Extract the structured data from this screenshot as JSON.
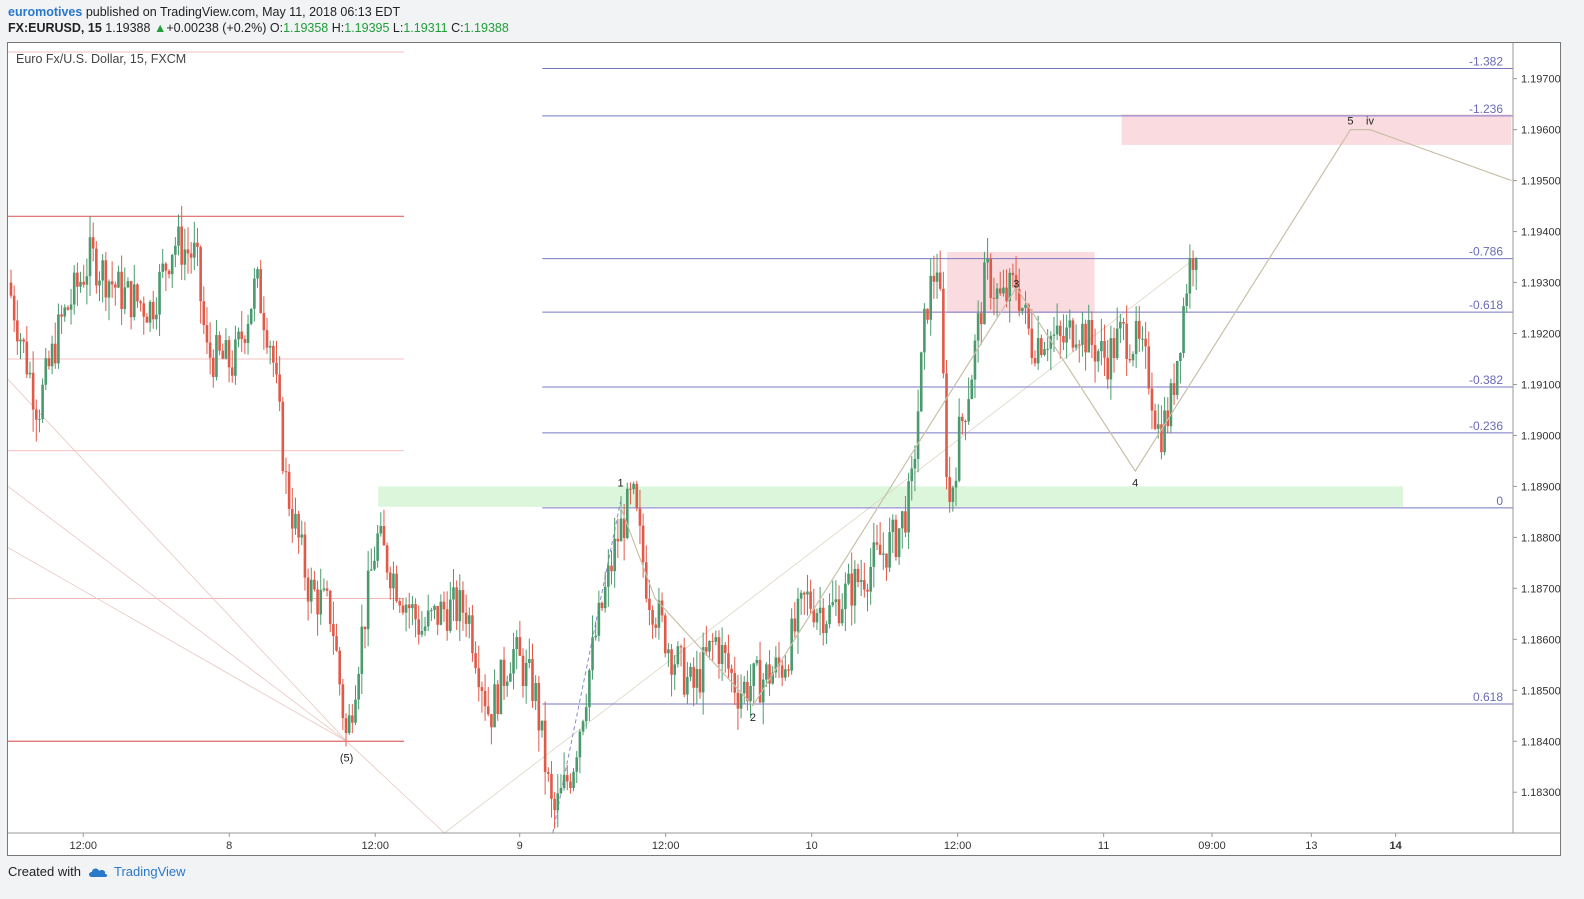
{
  "header": {
    "author": "euromotives",
    "published": " published on TradingView.com, May 11, 2018 06:13 EDT",
    "symbol": "FX:EURUSD, 15",
    "last": "1.19388",
    "change": "+0.00238 (+0.2%)",
    "open_label": "O:",
    "open": "1.19358",
    "high_label": "H:",
    "high": "1.19395",
    "low_label": "L:",
    "low": "1.19311",
    "close_label": "C:",
    "close": "1.19388"
  },
  "chart_title": "Euro Fx/U.S. Dollar, 15, FXCM",
  "footer": {
    "created_with": "Created with",
    "brand": "TradingView"
  },
  "colors": {
    "up": "#4a9a6e",
    "down": "#e05a4a",
    "fib_line": "#7777c4",
    "red_line": "#e06666",
    "pink_zone": "#f9d6da",
    "green_zone": "#d6f5d6",
    "wave_line": "#c9c0a8"
  },
  "chart_data": {
    "type": "candlestick",
    "title": "Euro Fx/U.S. Dollar, 15, FXCM",
    "ylim": [
      1.1822,
      1.1977
    ],
    "y_ticks": [
      "1.19700",
      "1.19600",
      "1.19500",
      "1.19400",
      "1.19300",
      "1.19200",
      "1.19100",
      "1.19000",
      "1.18900",
      "1.18800",
      "1.18700",
      "1.18600",
      "1.18500",
      "1.18400",
      "1.18300"
    ],
    "x_ticks": [
      "12:00",
      "8",
      "12:00",
      "9",
      "12:00",
      "10",
      "12:00",
      "11",
      "09:00",
      "13",
      "14"
    ],
    "price_path": [
      [
        0.0,
        1.193
      ],
      [
        0.02,
        1.1905
      ],
      [
        0.035,
        1.1922
      ],
      [
        0.055,
        1.1935
      ],
      [
        0.075,
        1.1928
      ],
      [
        0.095,
        1.1925
      ],
      [
        0.11,
        1.1938
      ],
      [
        0.125,
        1.1935
      ],
      [
        0.132,
        1.1916
      ],
      [
        0.15,
        1.1914
      ],
      [
        0.165,
        1.193
      ],
      [
        0.175,
        1.1918
      ],
      [
        0.185,
        1.189
      ],
      [
        0.2,
        1.187
      ],
      [
        0.215,
        1.1865
      ],
      [
        0.225,
        1.184
      ],
      [
        0.232,
        1.1855
      ],
      [
        0.245,
        1.188
      ],
      [
        0.26,
        1.187
      ],
      [
        0.275,
        1.1862
      ],
      [
        0.29,
        1.1866
      ],
      [
        0.305,
        1.1866
      ],
      [
        0.32,
        1.1845
      ],
      [
        0.335,
        1.1858
      ],
      [
        0.35,
        1.185
      ],
      [
        0.362,
        1.1825
      ],
      [
        0.375,
        1.1835
      ],
      [
        0.39,
        1.186
      ],
      [
        0.405,
        1.188
      ],
      [
        0.415,
        1.1888
      ],
      [
        0.425,
        1.187
      ],
      [
        0.44,
        1.1858
      ],
      [
        0.455,
        1.185
      ],
      [
        0.47,
        1.186
      ],
      [
        0.485,
        1.185
      ],
      [
        0.5,
        1.1852
      ],
      [
        0.515,
        1.1855
      ],
      [
        0.53,
        1.1868
      ],
      [
        0.545,
        1.1865
      ],
      [
        0.56,
        1.187
      ],
      [
        0.575,
        1.1875
      ],
      [
        0.59,
        1.188
      ],
      [
        0.6,
        1.1888
      ],
      [
        0.61,
        1.1925
      ],
      [
        0.618,
        1.1935
      ],
      [
        0.625,
        1.1885
      ],
      [
        0.632,
        1.19
      ],
      [
        0.64,
        1.1912
      ],
      [
        0.65,
        1.1932
      ],
      [
        0.66,
        1.1926
      ],
      [
        0.67,
        1.193
      ],
      [
        0.68,
        1.1918
      ],
      [
        0.69,
        1.192
      ],
      [
        0.7,
        1.1918
      ],
      [
        0.71,
        1.1922
      ],
      [
        0.72,
        1.1918
      ],
      [
        0.73,
        1.1915
      ],
      [
        0.74,
        1.192
      ],
      [
        0.75,
        1.1918
      ],
      [
        0.758,
        1.1912
      ],
      [
        0.765,
        1.19
      ],
      [
        0.772,
        1.1905
      ],
      [
        0.778,
        1.1918
      ],
      [
        0.784,
        1.1932
      ],
      [
        0.79,
        1.1939
      ]
    ],
    "fib_levels": [
      {
        "label": "-1.382",
        "value": 1.1972
      },
      {
        "label": "-1.236",
        "value": 1.19627
      },
      {
        "label": "-0.786",
        "value": 1.19347
      },
      {
        "label": "-0.618",
        "value": 1.19242
      },
      {
        "label": "-0.382",
        "value": 1.19095
      },
      {
        "label": "-0.236",
        "value": 1.19005
      },
      {
        "label": "0",
        "value": 1.18858
      },
      {
        "label": "0.618",
        "value": 1.18473
      }
    ],
    "red_lines": [
      1.1943,
      1.1915,
      1.1897,
      1.1868,
      1.184
    ],
    "zones": [
      {
        "kind": "pink",
        "y_top": 1.1963,
        "y_bottom": 1.1957,
        "x_start": 0.74,
        "x_end": 0.999
      },
      {
        "kind": "pink",
        "y_top": 1.1936,
        "y_bottom": 1.1924,
        "x_start": 0.624,
        "x_end": 0.722
      },
      {
        "kind": "green",
        "y_top": 1.189,
        "y_bottom": 1.1886,
        "x_start": 0.246,
        "x_end": 0.927
      }
    ],
    "wave_labels": [
      {
        "label": "(5)",
        "x": 0.225,
        "y": 1.1836,
        "color": "#c55"
      },
      {
        "label": "1",
        "x": 0.407,
        "y": 1.189,
        "color": "#222"
      },
      {
        "label": "2",
        "x": 0.495,
        "y": 1.1844,
        "color": "#222"
      },
      {
        "label": "3",
        "x": 0.67,
        "y": 1.1929,
        "color": "#222"
      },
      {
        "label": "4",
        "x": 0.749,
        "y": 1.189,
        "color": "#222"
      },
      {
        "label": "5",
        "x": 0.892,
        "y": 1.1961,
        "color": "#222"
      },
      {
        "label": "iv",
        "x": 0.905,
        "y": 1.1961,
        "color": "#8a5cc0"
      }
    ],
    "wave_path": [
      [
        0.407,
        1.1886
      ],
      [
        0.43,
        1.1868
      ],
      [
        0.495,
        1.1847
      ],
      [
        0.67,
        1.1929
      ],
      [
        0.749,
        1.1893
      ],
      [
        0.892,
        1.196
      ],
      [
        0.905,
        1.196
      ],
      [
        0.999,
        1.195
      ]
    ]
  }
}
